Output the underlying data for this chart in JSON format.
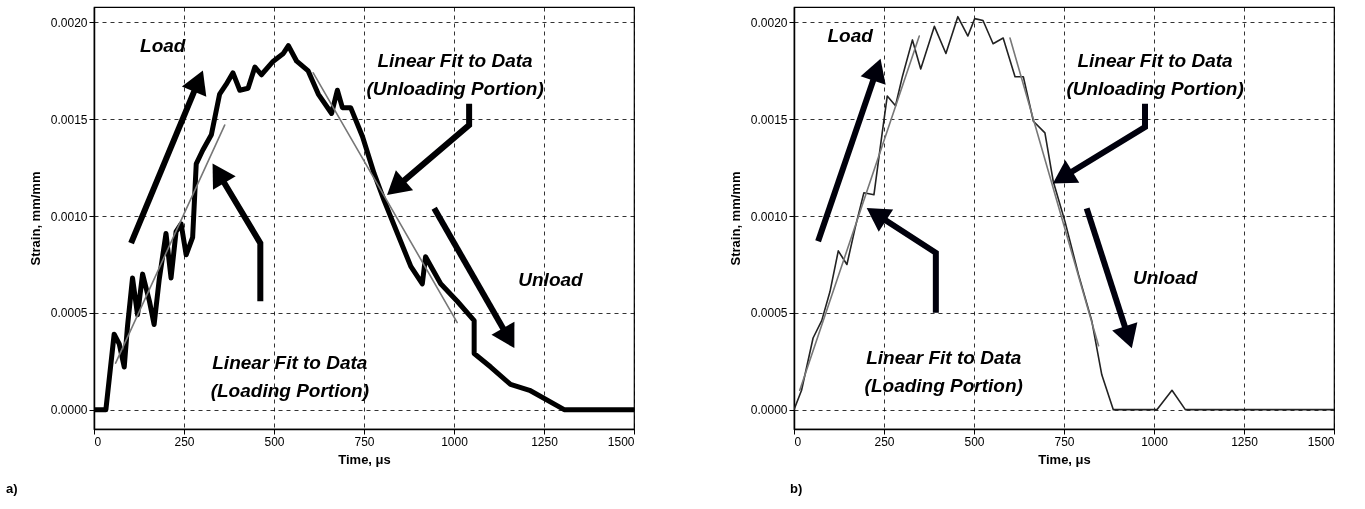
{
  "chart_data": [
    {
      "type": "line",
      "xlabel": "Time, μs",
      "ylabel": "Strain, mm/mm",
      "xlim": [
        0,
        1500
      ],
      "ylim": [
        -0.0001,
        0.00208
      ],
      "xticks": [
        0,
        250,
        500,
        750,
        1000,
        1250,
        1500
      ],
      "yticks": [
        {
          "value": 0,
          "label": "0.0000"
        },
        {
          "value": 0.0005,
          "label": "0.0005"
        },
        {
          "value": 0.001,
          "label": "0.0010"
        },
        {
          "value": 0.0015,
          "label": "0.0015"
        },
        {
          "value": 0.002,
          "label": "0.0020"
        }
      ],
      "grid": true,
      "annotations": [
        "Load",
        "Linear Fit to Data\n(Loading Portion)",
        "Linear Fit to Data\n(Unloading Portion)",
        "Unload",
        "a)"
      ],
      "series": [
        {
          "color": "#000000",
          "x": [
            0,
            23,
            33,
            56,
            70,
            84,
            93,
            107,
            121,
            135,
            154,
            167,
            181,
            200,
            214,
            228,
            242,
            256,
            274,
            284,
            302,
            326,
            349,
            367,
            386,
            405,
            428,
            447,
            465,
            498,
            526,
            540,
            563,
            595,
            623,
            660,
            676,
            690,
            713,
            746,
            778,
            806,
            843,
            880,
            912,
            921,
            963,
            1009,
            1056,
            1056,
            1102,
            1157,
            1210,
            1306,
            1361,
            1420,
            1500
          ],
          "values": [
            0,
            0,
            0,
            0.00039,
            0.00034,
            0.00022,
            0.00043,
            0.00068,
            0.00049,
            0.0007,
            0.00056,
            0.00044,
            0.00067,
            0.00091,
            0.00068,
            0.00092,
            0.00096,
            0.0008,
            0.00089,
            0.00127,
            0.00134,
            0.00142,
            0.00163,
            0.00168,
            0.00174,
            0.00165,
            0.00166,
            0.00177,
            0.00173,
            0.0018,
            0.00184,
            0.00188,
            0.0018,
            0.00175,
            0.00163,
            0.00153,
            0.00165,
            0.00156,
            0.00156,
            0.00141,
            0.00122,
            0.00108,
            0.00091,
            0.00074,
            0.00065,
            0.00079,
            0.00065,
            0.00056,
            0.00046,
            0.00029,
            0.00022,
            0.00013,
            0.0001,
            0,
            0,
            0,
            0
          ]
        },
        {
          "type": "line",
          "color": "#777777",
          "x": [
            60,
            363
          ],
          "values": [
            0.00024,
            0.00147
          ]
        },
        {
          "type": "line",
          "color": "#777777",
          "x": [
            609,
            1009
          ],
          "values": [
            0.00174,
            0.00045
          ]
        }
      ]
    },
    {
      "type": "line",
      "xlabel": "Time, μs",
      "ylabel": "Strain, mm/mm",
      "xlim": [
        0,
        1500
      ],
      "ylim": [
        -0.0001,
        0.00208
      ],
      "xticks": [
        0,
        250,
        500,
        750,
        1000,
        1250,
        1500
      ],
      "yticks": [
        {
          "value": 0,
          "label": "0.0000"
        },
        {
          "value": 0.0005,
          "label": "0.0005"
        },
        {
          "value": 0.001,
          "label": "0.0010"
        },
        {
          "value": 0.0015,
          "label": "0.0015"
        },
        {
          "value": 0.002,
          "label": "0.0020"
        }
      ],
      "grid": true,
      "annotations": [
        "Load",
        "Linear Fit to Data\n(Loading Portion)",
        "Linear Fit to Data\n(Unloading Portion)",
        "Unload",
        "b)"
      ],
      "series": [
        {
          "color": "#222222",
          "x": [
            0,
            21,
            53,
            77,
            100,
            123,
            147,
            170,
            194,
            222,
            245,
            259,
            282,
            301,
            329,
            352,
            390,
            422,
            455,
            483,
            502,
            525,
            553,
            581,
            614,
            637,
            665,
            697,
            720,
            753,
            790,
            827,
            855,
            887,
            906,
            938,
            975,
            1008,
            1050,
            1087,
            1142,
            1189,
            1240,
            1291,
            1365,
            1439,
            1500
          ],
          "values": [
            0,
            0.0001,
            0.00037,
            0.00046,
            0.00061,
            0.00082,
            0.00075,
            0.00094,
            0.00112,
            0.00111,
            0.00143,
            0.00162,
            0.00157,
            0.00172,
            0.00191,
            0.00176,
            0.00198,
            0.00184,
            0.00203,
            0.00193,
            0.00202,
            0.00201,
            0.00189,
            0.00192,
            0.00172,
            0.00172,
            0.00149,
            0.00143,
            0.00118,
            0.00097,
            0.0007,
            0.00046,
            0.00018,
            0,
            0,
            0,
            0,
            0,
            0.0001,
            0,
            0,
            0,
            0,
            0,
            0,
            0,
            0
          ]
        },
        {
          "type": "line",
          "color": "#777777",
          "x": [
            16,
            348
          ],
          "values": [
            0.0001,
            0.00193
          ]
        },
        {
          "type": "line",
          "color": "#777777",
          "x": [
            600,
            846
          ],
          "values": [
            0.00192,
            0.00033
          ]
        }
      ]
    }
  ]
}
